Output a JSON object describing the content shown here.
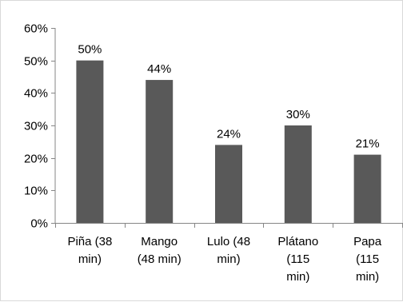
{
  "chart_data": {
    "type": "bar",
    "categories": [
      [
        "Piña (38",
        "min)"
      ],
      [
        "Mango",
        "(48 min)"
      ],
      [
        "Lulo (48",
        "min)"
      ],
      [
        "Plátano",
        "(115",
        "min)"
      ],
      [
        "Papa",
        "(115",
        "min)"
      ]
    ],
    "values": [
      50,
      44,
      24,
      30,
      21
    ],
    "data_labels": [
      "50%",
      "44%",
      "24%",
      "30%",
      "21%"
    ],
    "y_ticks": [
      "0%",
      "10%",
      "20%",
      "30%",
      "40%",
      "50%",
      "60%"
    ],
    "ylim": [
      0,
      60
    ],
    "grid": false,
    "legend": "none",
    "bar_color": "#595959",
    "axis_color": "#868686"
  }
}
